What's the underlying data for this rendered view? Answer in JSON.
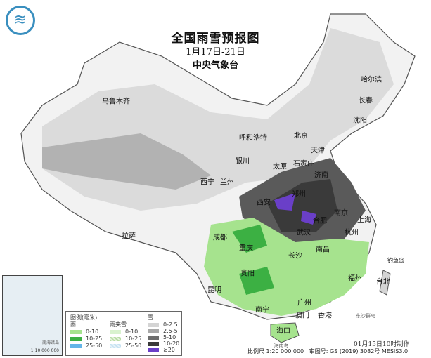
{
  "header": {
    "title": "全国雨雪预报图",
    "date_range": "1月17日-21日",
    "agency": "中央气象台"
  },
  "logo": {
    "icon": "cma-logo-icon"
  },
  "cities": [
    "哈尔滨",
    "长春",
    "沈阳",
    "乌鲁木齐",
    "呼和浩特",
    "北京",
    "天津",
    "银川",
    "太原",
    "石家庄",
    "西宁",
    "兰州",
    "济南",
    "郑州",
    "西安",
    "南京",
    "上海",
    "合肥",
    "武汉",
    "杭州",
    "成都",
    "重庆",
    "长沙",
    "南昌",
    "拉萨",
    "贵阳",
    "福州",
    "台北",
    "昆明",
    "南宁",
    "广州",
    "澳门",
    "香港",
    "海口",
    "钓鱼岛",
    "东沙群岛",
    "海南岛"
  ],
  "legend": {
    "title": "图例(毫米)",
    "rain": {
      "label": "雨",
      "items": [
        {
          "range": "0-10",
          "color": "#a6e38e"
        },
        {
          "range": "10-25",
          "color": "#3cb043"
        },
        {
          "range": "25-50",
          "color": "#64b5e8"
        }
      ]
    },
    "sleet": {
      "label": "雨夹雪",
      "items": [
        {
          "range": "0-10",
          "color": "#d9f2cf"
        },
        {
          "range": "10-25",
          "color": "#b9dca6"
        },
        {
          "range": "25-50",
          "color": "#c6e2f2"
        }
      ]
    },
    "snow": {
      "label": "雪",
      "items": [
        {
          "range": "0-2.5",
          "color": "#d4d4d4"
        },
        {
          "range": "2.5-5",
          "color": "#a8a8a8"
        },
        {
          "range": "5-10",
          "color": "#6e6e6e"
        },
        {
          "range": "10-20",
          "color": "#3a3a3a"
        },
        {
          "range": "≥20",
          "color": "#6a3fc8"
        }
      ]
    }
  },
  "inset": {
    "label": "南海诸岛",
    "scale": "1:10 000 000"
  },
  "footer": {
    "made": "01月15日10时制作",
    "scale": "比例尺 1:20 000 000",
    "review_no": "审图号: GS (2019) 3082号 MESIS3.0"
  }
}
